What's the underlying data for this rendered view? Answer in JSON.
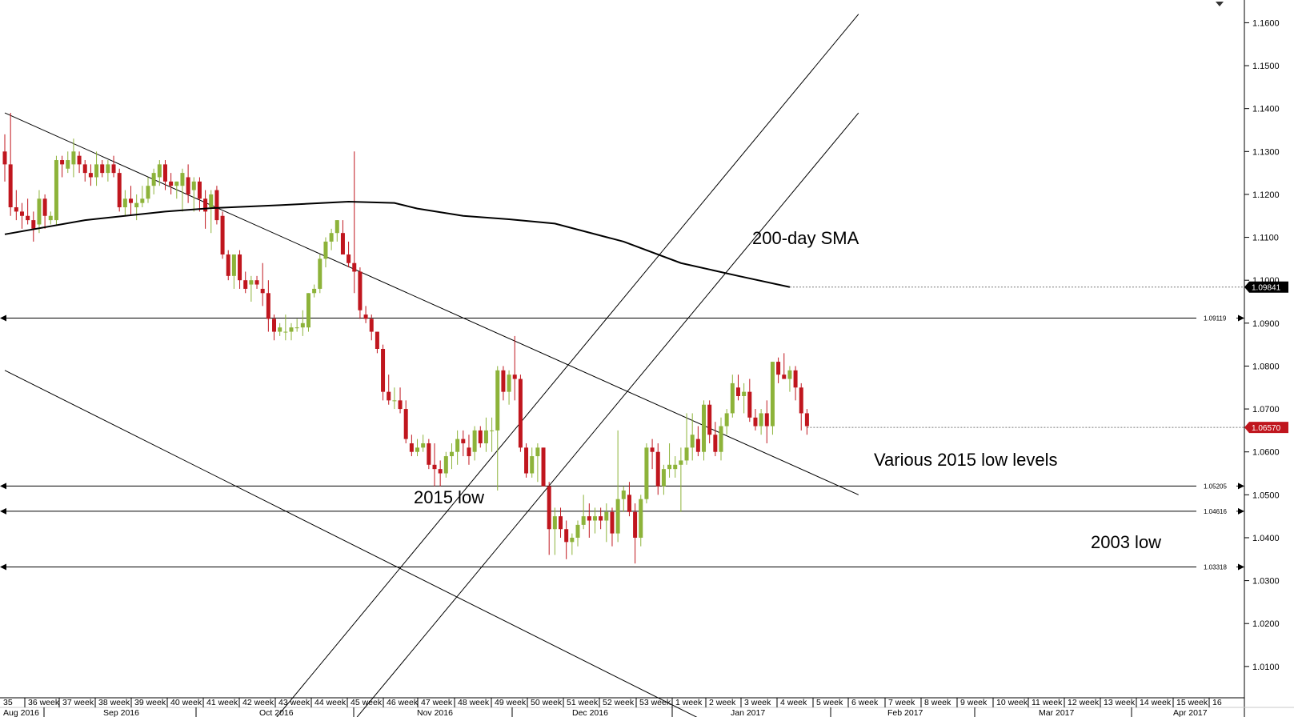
{
  "chart_data": {
    "type": "candlestick",
    "title": "",
    "ylim": [
      1.0027,
      1.1653
    ],
    "y_ticks": [
      "1.1600",
      "1.1500",
      "1.1400",
      "1.1300",
      "1.1200",
      "1.1100",
      "1.1000",
      "1.0900",
      "1.0800",
      "1.0700",
      "1.0600",
      "1.0500",
      "1.0400",
      "1.0300",
      "1.0200",
      "1.0100"
    ],
    "price_tags": [
      {
        "label": "1.09841",
        "value": 1.09841,
        "color": "#000000",
        "text_color": "#ffffff"
      },
      {
        "label": "1.06570",
        "value": 1.0657,
        "color": "#c0161e",
        "text_color": "#ffffff"
      }
    ],
    "level_lines": [
      {
        "label": "1.09119",
        "value": 1.09119
      },
      {
        "label": "1.05205",
        "value": 1.05205
      },
      {
        "label": "1.04616",
        "value": 1.04616
      },
      {
        "label": "1.03318",
        "value": 1.03318
      }
    ],
    "annotations": [
      "200-day SMA",
      "Various 2015 low levels",
      "2015 low",
      "2003 low"
    ],
    "week_labels": [
      "35",
      "36 week",
      "37 week",
      "38 week",
      "39 week",
      "40 week",
      "41 week",
      "42 week",
      "43 week",
      "44 week",
      "45 week",
      "46 week",
      "47 week",
      "48 week",
      "49 week",
      "50 week",
      "51 week",
      "52 week",
      "53 week",
      "1 week",
      "2 week",
      "3 week",
      "4 week",
      "5 week",
      "6 week",
      "7 week",
      "8 week",
      "9 week",
      "10 week",
      "11 week",
      "12 week",
      "13 week",
      "14 week",
      "15 week",
      "16"
    ],
    "month_labels": [
      "Aug 2016",
      "Sep 2016",
      "Oct 2016",
      "Nov 2016",
      "Dec 2016",
      "Jan 2017",
      "Feb 2017",
      "Mar 2017",
      "Apr 2017"
    ],
    "colors": {
      "up": "#8db33a",
      "down": "#c0161e",
      "sma": "#000000",
      "lines": "#000000"
    },
    "candles": [
      [
        1.13,
        1.134,
        1.123,
        1.127
      ],
      [
        1.127,
        1.139,
        1.115,
        1.117
      ],
      [
        1.117,
        1.121,
        1.114,
        1.116
      ],
      [
        1.116,
        1.118,
        1.112,
        1.115
      ],
      [
        1.115,
        1.119,
        1.113,
        1.114
      ],
      [
        1.114,
        1.116,
        1.109,
        1.112
      ],
      [
        1.113,
        1.121,
        1.111,
        1.119
      ],
      [
        1.119,
        1.12,
        1.112,
        1.115
      ],
      [
        1.114,
        1.116,
        1.113,
        1.115
      ],
      [
        1.114,
        1.129,
        1.113,
        1.128
      ],
      [
        1.128,
        1.129,
        1.124,
        1.127
      ],
      [
        1.126,
        1.13,
        1.125,
        1.128
      ],
      [
        1.127,
        1.133,
        1.124,
        1.13
      ],
      [
        1.129,
        1.13,
        1.125,
        1.127
      ],
      [
        1.127,
        1.128,
        1.123,
        1.125
      ],
      [
        1.125,
        1.127,
        1.122,
        1.124
      ],
      [
        1.124,
        1.13,
        1.122,
        1.127
      ],
      [
        1.127,
        1.128,
        1.124,
        1.125
      ],
      [
        1.125,
        1.128,
        1.123,
        1.127
      ],
      [
        1.127,
        1.129,
        1.124,
        1.125
      ],
      [
        1.125,
        1.126,
        1.116,
        1.117
      ],
      [
        1.117,
        1.121,
        1.115,
        1.119
      ],
      [
        1.119,
        1.122,
        1.115,
        1.118
      ],
      [
        1.117,
        1.12,
        1.114,
        1.118
      ],
      [
        1.118,
        1.122,
        1.117,
        1.119
      ],
      [
        1.119,
        1.124,
        1.118,
        1.122
      ],
      [
        1.122,
        1.126,
        1.12,
        1.125
      ],
      [
        1.124,
        1.128,
        1.122,
        1.127
      ],
      [
        1.127,
        1.128,
        1.121,
        1.123
      ],
      [
        1.123,
        1.125,
        1.12,
        1.122
      ],
      [
        1.122,
        1.123,
        1.119,
        1.123
      ],
      [
        1.122,
        1.126,
        1.116,
        1.125
      ],
      [
        1.124,
        1.127,
        1.118,
        1.12
      ],
      [
        1.121,
        1.124,
        1.116,
        1.123
      ],
      [
        1.123,
        1.124,
        1.116,
        1.119
      ],
      [
        1.119,
        1.121,
        1.112,
        1.116
      ],
      [
        1.117,
        1.121,
        1.111,
        1.12
      ],
      [
        1.121,
        1.122,
        1.113,
        1.114
      ],
      [
        1.115,
        1.116,
        1.105,
        1.106
      ],
      [
        1.106,
        1.107,
        1.1,
        1.101
      ],
      [
        1.101,
        1.106,
        1.098,
        1.106
      ],
      [
        1.106,
        1.107,
        1.098,
        1.1
      ],
      [
        1.1,
        1.102,
        1.097,
        1.098
      ],
      [
        1.099,
        1.101,
        1.095,
        1.1
      ],
      [
        1.1,
        1.101,
        1.098,
        1.099
      ],
      [
        1.098,
        1.104,
        1.094,
        1.097
      ],
      [
        1.097,
        1.1,
        1.088,
        1.091
      ],
      [
        1.091,
        1.092,
        1.086,
        1.088
      ],
      [
        1.088,
        1.09,
        1.087,
        1.089
      ],
      [
        1.088,
        1.092,
        1.086,
        1.088
      ],
      [
        1.088,
        1.09,
        1.086,
        1.089
      ],
      [
        1.089,
        1.091,
        1.088,
        1.089
      ],
      [
        1.089,
        1.093,
        1.087,
        1.09
      ],
      [
        1.089,
        1.097,
        1.088,
        1.097
      ],
      [
        1.097,
        1.099,
        1.096,
        1.098
      ],
      [
        1.098,
        1.106,
        1.097,
        1.105
      ],
      [
        1.105,
        1.11,
        1.103,
        1.109
      ],
      [
        1.109,
        1.112,
        1.107,
        1.111
      ],
      [
        1.111,
        1.114,
        1.109,
        1.114
      ],
      [
        1.111,
        1.114,
        1.106,
        1.106
      ],
      [
        1.106,
        1.109,
        1.103,
        1.104
      ],
      [
        1.104,
        1.13,
        1.097,
        1.102
      ],
      [
        1.102,
        1.103,
        1.091,
        1.093
      ],
      [
        1.092,
        1.094,
        1.09,
        1.091
      ],
      [
        1.091,
        1.092,
        1.086,
        1.088
      ],
      [
        1.088,
        1.088,
        1.083,
        1.084
      ],
      [
        1.084,
        1.085,
        1.072,
        1.074
      ],
      [
        1.074,
        1.078,
        1.071,
        1.072
      ],
      [
        1.072,
        1.075,
        1.07,
        1.072
      ],
      [
        1.072,
        1.075,
        1.069,
        1.07
      ],
      [
        1.07,
        1.072,
        1.062,
        1.063
      ],
      [
        1.062,
        1.064,
        1.059,
        1.06
      ],
      [
        1.06,
        1.063,
        1.059,
        1.061
      ],
      [
        1.061,
        1.064,
        1.06,
        1.062
      ],
      [
        1.062,
        1.063,
        1.056,
        1.057
      ],
      [
        1.057,
        1.062,
        1.052,
        1.056
      ],
      [
        1.056,
        1.058,
        1.052,
        1.055
      ],
      [
        1.055,
        1.06,
        1.054,
        1.059
      ],
      [
        1.059,
        1.062,
        1.056,
        1.06
      ],
      [
        1.06,
        1.065,
        1.057,
        1.063
      ],
      [
        1.063,
        1.065,
        1.059,
        1.062
      ],
      [
        1.061,
        1.064,
        1.057,
        1.059
      ],
      [
        1.06,
        1.066,
        1.058,
        1.065
      ],
      [
        1.065,
        1.066,
        1.061,
        1.062
      ],
      [
        1.062,
        1.068,
        1.06,
        1.065
      ],
      [
        1.065,
        1.068,
        1.06,
        1.065
      ],
      [
        1.065,
        1.08,
        1.051,
        1.079
      ],
      [
        1.079,
        1.08,
        1.072,
        1.074
      ],
      [
        1.074,
        1.079,
        1.071,
        1.078
      ],
      [
        1.078,
        1.087,
        1.072,
        1.077
      ],
      [
        1.077,
        1.078,
        1.06,
        1.061
      ],
      [
        1.061,
        1.062,
        1.054,
        1.055
      ],
      [
        1.055,
        1.061,
        1.054,
        1.059
      ],
      [
        1.059,
        1.062,
        1.053,
        1.061
      ],
      [
        1.061,
        1.061,
        1.052,
        1.052
      ],
      [
        1.052,
        1.053,
        1.036,
        1.042
      ],
      [
        1.042,
        1.047,
        1.036,
        1.045
      ],
      [
        1.045,
        1.047,
        1.04,
        1.042
      ],
      [
        1.042,
        1.044,
        1.035,
        1.039
      ],
      [
        1.039,
        1.041,
        1.036,
        1.04
      ],
      [
        1.04,
        1.044,
        1.038,
        1.043
      ],
      [
        1.043,
        1.05,
        1.042,
        1.045
      ],
      [
        1.045,
        1.048,
        1.04,
        1.044
      ],
      [
        1.044,
        1.047,
        1.041,
        1.045
      ],
      [
        1.045,
        1.047,
        1.042,
        1.044
      ],
      [
        1.044,
        1.048,
        1.039,
        1.046
      ],
      [
        1.046,
        1.047,
        1.038,
        1.041
      ],
      [
        1.041,
        1.065,
        1.039,
        1.049
      ],
      [
        1.049,
        1.052,
        1.046,
        1.051
      ],
      [
        1.05,
        1.053,
        1.045,
        1.046
      ],
      [
        1.046,
        1.048,
        1.034,
        1.04
      ],
      [
        1.04,
        1.05,
        1.038,
        1.049
      ],
      [
        1.049,
        1.062,
        1.048,
        1.061
      ],
      [
        1.061,
        1.063,
        1.056,
        1.06
      ],
      [
        1.06,
        1.062,
        1.05,
        1.052
      ],
      [
        1.052,
        1.057,
        1.05,
        1.056
      ],
      [
        1.056,
        1.062,
        1.054,
        1.057
      ],
      [
        1.056,
        1.059,
        1.054,
        1.057
      ],
      [
        1.057,
        1.061,
        1.046,
        1.058
      ],
      [
        1.058,
        1.069,
        1.057,
        1.061
      ],
      [
        1.061,
        1.069,
        1.058,
        1.064
      ],
      [
        1.063,
        1.066,
        1.059,
        1.06
      ],
      [
        1.06,
        1.072,
        1.058,
        1.071
      ],
      [
        1.071,
        1.072,
        1.062,
        1.064
      ],
      [
        1.064,
        1.067,
        1.059,
        1.06
      ],
      [
        1.06,
        1.068,
        1.058,
        1.066
      ],
      [
        1.066,
        1.07,
        1.064,
        1.069
      ],
      [
        1.069,
        1.078,
        1.068,
        1.076
      ],
      [
        1.075,
        1.078,
        1.072,
        1.073
      ],
      [
        1.073,
        1.076,
        1.069,
        1.074
      ],
      [
        1.074,
        1.077,
        1.067,
        1.068
      ],
      [
        1.068,
        1.07,
        1.065,
        1.066
      ],
      [
        1.066,
        1.07,
        1.064,
        1.069
      ],
      [
        1.069,
        1.072,
        1.062,
        1.066
      ],
      [
        1.066,
        1.081,
        1.064,
        1.081
      ],
      [
        1.081,
        1.082,
        1.076,
        1.078
      ],
      [
        1.078,
        1.083,
        1.077,
        1.077
      ],
      [
        1.077,
        1.08,
        1.074,
        1.079
      ],
      [
        1.079,
        1.08,
        1.072,
        1.075
      ],
      [
        1.075,
        1.076,
        1.065,
        1.069
      ],
      [
        1.069,
        1.07,
        1.064,
        1.066
      ]
    ],
    "sma": [
      [
        0,
        1.1107
      ],
      [
        14,
        1.114
      ],
      [
        28,
        1.116
      ],
      [
        36,
        1.1168
      ],
      [
        48,
        1.1175
      ],
      [
        60,
        1.1183
      ],
      [
        68,
        1.118
      ],
      [
        72,
        1.1167
      ],
      [
        80,
        1.115
      ],
      [
        88,
        1.1142
      ],
      [
        96,
        1.1132
      ],
      [
        108,
        1.109
      ],
      [
        118,
        1.104
      ],
      [
        128,
        1.101
      ],
      [
        137,
        1.0984
      ]
    ],
    "channels": [
      {
        "x1": 0,
        "y1": 1.139,
        "x2": 149,
        "y2": 1.05
      },
      {
        "x1": 0,
        "y1": 1.079,
        "x2": 130,
        "y2": 0.992
      },
      {
        "x1": 43,
        "y1": 0.991,
        "x2": 149,
        "y2": 1.162
      },
      {
        "x1": 57,
        "y1": 0.991,
        "x2": 149,
        "y2": 1.139
      }
    ]
  }
}
